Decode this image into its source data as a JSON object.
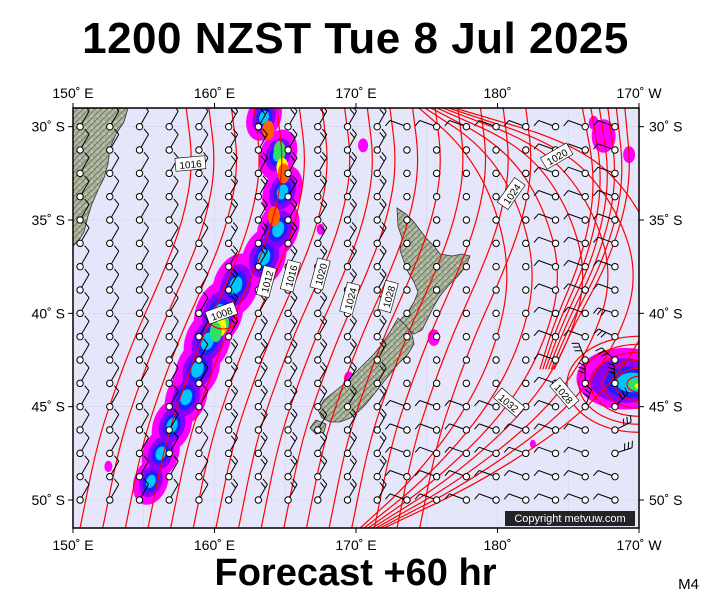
{
  "header": {
    "title": "1200 NZST Tue 8 Jul 2025"
  },
  "footer": {
    "forecast": "Forecast +60 hr",
    "model": "M4"
  },
  "copyright": "Copyright metvuw.com",
  "axes": {
    "lon_ticks": [
      {
        "lon": 150,
        "label": "150˚ E"
      },
      {
        "lon": 160,
        "label": "160˚ E"
      },
      {
        "lon": 170,
        "label": "170˚ E"
      },
      {
        "lon": 180,
        "label": "180˚"
      },
      {
        "lon": 190,
        "label": "170˚ W"
      }
    ],
    "lat_ticks": [
      {
        "lat": -30,
        "label": "30˚ S"
      },
      {
        "lat": -35,
        "label": "35˚ S"
      },
      {
        "lat": -40,
        "label": "40˚ S"
      },
      {
        "lat": -45,
        "label": "45˚ S"
      },
      {
        "lat": -50,
        "label": "50˚ S"
      }
    ],
    "lon_range": [
      150,
      190
    ],
    "lat_range": [
      -29,
      -51.5
    ]
  },
  "isobars": {
    "color": "#ff0000",
    "labels": [
      {
        "text": "1016",
        "lon": 158.3,
        "lat": -32.0,
        "angle": -5
      },
      {
        "text": "1020",
        "lon": 184.2,
        "lat": -31.6,
        "angle": -30
      },
      {
        "text": "1024",
        "lon": 181.0,
        "lat": -33.6,
        "angle": -55
      },
      {
        "text": "1008",
        "lon": 160.5,
        "lat": -40.0,
        "angle": -20
      },
      {
        "text": "1012",
        "lon": 163.7,
        "lat": -38.3,
        "angle": -75
      },
      {
        "text": "1016",
        "lon": 165.4,
        "lat": -38.0,
        "angle": -75
      },
      {
        "text": "1020",
        "lon": 167.5,
        "lat": -37.9,
        "angle": -75
      },
      {
        "text": "1024",
        "lon": 169.6,
        "lat": -39.2,
        "angle": -75
      },
      {
        "text": "1028",
        "lon": 172.3,
        "lat": -39.1,
        "angle": -75
      },
      {
        "text": "1032",
        "lon": 180.8,
        "lat": -44.8,
        "angle": 40
      },
      {
        "text": "1028",
        "lon": 184.7,
        "lat": -44.3,
        "angle": 50
      }
    ]
  },
  "precip_colors": [
    "#ff00ff",
    "#8a00ff",
    "#2020ff",
    "#00c8ff",
    "#30e060",
    "#ffff00",
    "#ff6000",
    "#ff0000"
  ],
  "land_color": "#9aa58a",
  "ocean_color": "#e6e6fa"
}
